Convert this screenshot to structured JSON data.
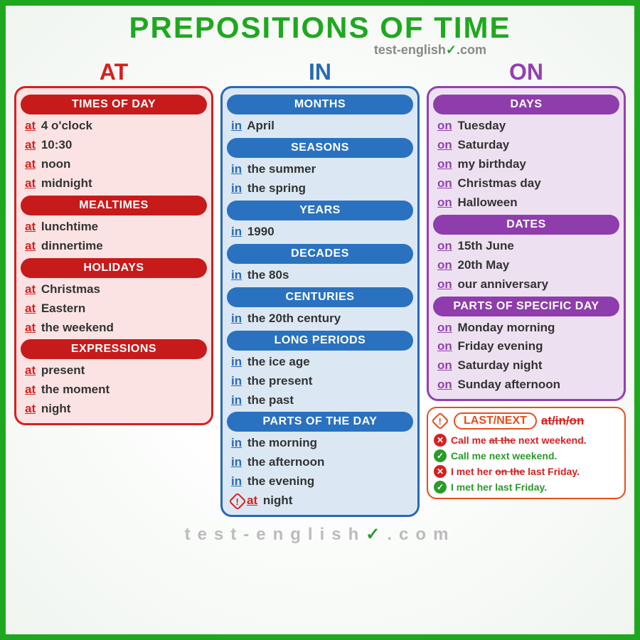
{
  "title": "PREPOSITIONS OF TIME",
  "subtitle_a": "test-english",
  "subtitle_b": "com",
  "columns": [
    {
      "key": "at",
      "head": "AT",
      "prep": "at",
      "sections": [
        {
          "title": "TIMES OF DAY",
          "items": [
            "4 o'clock",
            "10:30",
            "noon",
            "midnight"
          ]
        },
        {
          "title": "MEALTIMES",
          "items": [
            "lunchtime",
            "dinnertime"
          ]
        },
        {
          "title": "HOLIDAYS",
          "items": [
            "Christmas",
            "Eastern",
            "the weekend"
          ]
        },
        {
          "title": "EXPRESSIONS",
          "items": [
            "present",
            "the moment",
            "night"
          ]
        }
      ]
    },
    {
      "key": "in",
      "head": "IN",
      "prep": "in",
      "sections": [
        {
          "title": "MONTHS",
          "items": [
            "April"
          ]
        },
        {
          "title": "SEASONS",
          "items": [
            "the summer",
            "the spring"
          ]
        },
        {
          "title": "YEARS",
          "items": [
            "1990"
          ]
        },
        {
          "title": "DECADES",
          "items": [
            "the 80s"
          ]
        },
        {
          "title": "CENTURIES",
          "items": [
            "the 20th century"
          ]
        },
        {
          "title": "LONG PERIODS",
          "items": [
            "the ice age",
            "the present",
            "the past"
          ]
        },
        {
          "title": "PARTS OF THE DAY",
          "items": [
            "the morning",
            "the afternoon",
            "the evening"
          ],
          "warn_item": "night",
          "warn_prep": "at"
        }
      ]
    },
    {
      "key": "on",
      "head": "ON",
      "prep": "on",
      "sections": [
        {
          "title": "DAYS",
          "items": [
            "Tuesday",
            "Saturday",
            "my birthday",
            "Christmas day",
            "Halloween"
          ]
        },
        {
          "title": "DATES",
          "items": [
            "15th June",
            "20th May",
            "our anniversary"
          ]
        },
        {
          "title": "PARTS OF SPECIFIC DAY",
          "items": [
            "Monday morning",
            "Friday evening",
            "Saturday night",
            "Sunday afternoon"
          ]
        }
      ]
    }
  ],
  "note": {
    "bubble": "LAST/NEXT",
    "strike": "at/in/on",
    "examples": [
      {
        "ok": false,
        "pre": "Call me ",
        "st": "at the",
        "post": " next weekend."
      },
      {
        "ok": true,
        "pre": "Call me next weekend.",
        "st": "",
        "post": ""
      },
      {
        "ok": false,
        "pre": "I met her ",
        "st": "on the",
        "post": " last Friday."
      },
      {
        "ok": true,
        "pre": "I met her last Friday.",
        "st": "",
        "post": ""
      }
    ]
  },
  "footer_a": "test-english",
  "footer_b": ".com",
  "colors": {
    "at": "#d62020",
    "in": "#2968b6",
    "on": "#9340b0",
    "frame": "#1fa81f",
    "note": "#e84c1a",
    "good": "#2a9b2a"
  }
}
